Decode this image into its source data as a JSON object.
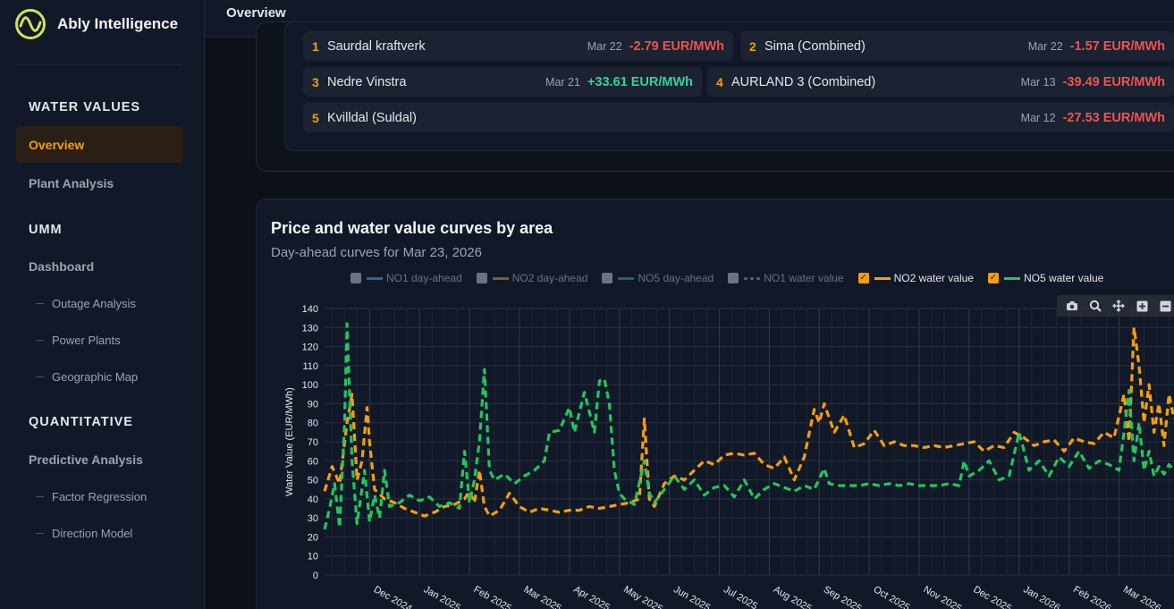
{
  "app": {
    "name": "Ably Intelligence"
  },
  "header": {
    "title": "Overview"
  },
  "sidebar": {
    "sections": [
      {
        "title": "WATER VALUES",
        "items": [
          "Overview",
          "Plant Analysis"
        ]
      },
      {
        "title": "UMM",
        "items": [
          "Dashboard"
        ],
        "subitems": [
          "Outage Analysis",
          "Power Plants",
          "Geographic Map"
        ]
      },
      {
        "title": "QUANTITATIVE",
        "items": [
          "Predictive Analysis"
        ],
        "subitems": [
          "Factor Regression",
          "Direction Model"
        ]
      }
    ],
    "active": "Overview"
  },
  "top_changes": [
    {
      "rank": "1",
      "name": "Saurdal kraftverk",
      "date": "Mar 22",
      "value": "-2.79 EUR/MWh",
      "direction": "neg"
    },
    {
      "rank": "2",
      "name": "Sima (Combined)",
      "date": "Mar 22",
      "value": "-1.57 EUR/MWh",
      "direction": "neg"
    },
    {
      "rank": "3",
      "name": "Nedre Vinstra",
      "date": "Mar 21",
      "value": "+33.61 EUR/MWh",
      "direction": "pos"
    },
    {
      "rank": "4",
      "name": "AURLAND 3 (Combined)",
      "date": "Mar 13",
      "value": "-39.49 EUR/MWh",
      "direction": "neg"
    },
    {
      "rank": "5",
      "name": "Kvilldal (Suldal)",
      "date": "Mar 12",
      "value": "-27.53 EUR/MWh",
      "direction": "neg"
    }
  ],
  "chart_card": {
    "title": "Price and water value curves by area",
    "subtitle": "Day-ahead curves for Mar 23, 2026"
  },
  "legend": [
    {
      "label": "NO1 day-ahead",
      "color": "#3b5b99",
      "checked": false,
      "style": "solid"
    },
    {
      "label": "NO2 day-ahead",
      "color": "#8a5a2b",
      "checked": false,
      "style": "solid"
    },
    {
      "label": "NO5 day-ahead",
      "color": "#1e6b4a",
      "checked": false,
      "style": "solid"
    },
    {
      "label": "NO1 water value",
      "color": "#3b5b99",
      "checked": false,
      "style": "dotted"
    },
    {
      "label": "NO2 water value",
      "color": "#f59e0b",
      "checked": true,
      "style": "solid"
    },
    {
      "label": "NO5 water value",
      "color": "#22c55e",
      "checked": true,
      "style": "solid"
    }
  ],
  "modebar_icons": [
    "camera-icon",
    "zoom-icon",
    "pan-icon",
    "zoom-in-icon",
    "zoom-out-icon"
  ],
  "chart_data": {
    "type": "line",
    "ylabel": "Water Value (EUR/MWh)",
    "ylim": [
      0,
      140
    ],
    "yticks": [
      "0",
      "10",
      "20",
      "30",
      "40",
      "50",
      "60",
      "70",
      "80",
      "90",
      "100",
      "110",
      "120",
      "130",
      "140"
    ],
    "xticks": [
      "Dec 2024",
      "Jan 2025",
      "Feb 2025",
      "Mar 2025",
      "Apr 2025",
      "May 2025",
      "Jun 2025",
      "Jul 2025",
      "Aug 2025",
      "Sep 2025",
      "Oct 2025",
      "Nov 2025",
      "Dec 2025",
      "Jan 2026",
      "Feb 2026",
      "Mar 2026"
    ],
    "xlim_months": [
      -0.9,
      16.1
    ],
    "grid": true,
    "series": [
      {
        "name": "NO2 water value",
        "color": "#f59e0b",
        "points": [
          [
            -0.9,
            44
          ],
          [
            -0.75,
            57
          ],
          [
            -0.6,
            48
          ],
          [
            -0.45,
            80
          ],
          [
            -0.35,
            95
          ],
          [
            -0.25,
            50
          ],
          [
            -0.15,
            60
          ],
          [
            -0.05,
            88
          ],
          [
            0.0,
            70
          ],
          [
            0.1,
            45
          ],
          [
            0.3,
            40
          ],
          [
            0.5,
            38
          ],
          [
            0.7,
            35
          ],
          [
            0.9,
            33
          ],
          [
            1.1,
            31
          ],
          [
            1.3,
            33
          ],
          [
            1.5,
            36
          ],
          [
            1.7,
            37
          ],
          [
            1.9,
            40
          ],
          [
            2.0,
            44
          ],
          [
            2.1,
            38
          ],
          [
            2.2,
            55
          ],
          [
            2.3,
            36
          ],
          [
            2.4,
            31
          ],
          [
            2.6,
            34
          ],
          [
            2.8,
            43
          ],
          [
            3.0,
            36
          ],
          [
            3.2,
            33
          ],
          [
            3.4,
            35
          ],
          [
            3.6,
            34
          ],
          [
            3.8,
            33
          ],
          [
            4.0,
            34
          ],
          [
            4.2,
            34
          ],
          [
            4.4,
            36
          ],
          [
            4.6,
            35
          ],
          [
            4.8,
            36
          ],
          [
            5.0,
            37
          ],
          [
            5.2,
            38
          ],
          [
            5.4,
            40
          ],
          [
            5.5,
            82
          ],
          [
            5.6,
            40
          ],
          [
            5.7,
            36
          ],
          [
            5.9,
            48
          ],
          [
            6.1,
            52
          ],
          [
            6.3,
            50
          ],
          [
            6.5,
            55
          ],
          [
            6.7,
            60
          ],
          [
            6.9,
            58
          ],
          [
            7.1,
            63
          ],
          [
            7.3,
            64
          ],
          [
            7.5,
            63
          ],
          [
            7.7,
            64
          ],
          [
            7.9,
            58
          ],
          [
            8.1,
            56
          ],
          [
            8.3,
            62
          ],
          [
            8.5,
            50
          ],
          [
            8.7,
            62
          ],
          [
            8.9,
            87
          ],
          [
            9.0,
            80
          ],
          [
            9.1,
            90
          ],
          [
            9.3,
            75
          ],
          [
            9.5,
            84
          ],
          [
            9.7,
            67
          ],
          [
            9.9,
            69
          ],
          [
            10.1,
            76
          ],
          [
            10.3,
            68
          ],
          [
            10.5,
            70
          ],
          [
            10.7,
            68
          ],
          [
            10.9,
            68
          ],
          [
            11.1,
            67
          ],
          [
            11.3,
            68
          ],
          [
            11.5,
            67
          ],
          [
            11.7,
            68
          ],
          [
            11.9,
            69
          ],
          [
            12.1,
            70
          ],
          [
            12.3,
            65
          ],
          [
            12.5,
            68
          ],
          [
            12.7,
            67
          ],
          [
            12.9,
            75
          ],
          [
            13.1,
            72
          ],
          [
            13.3,
            68
          ],
          [
            13.5,
            70
          ],
          [
            13.7,
            71
          ],
          [
            13.9,
            65
          ],
          [
            14.1,
            72
          ],
          [
            14.3,
            70
          ],
          [
            14.5,
            69
          ],
          [
            14.7,
            75
          ],
          [
            14.9,
            72
          ],
          [
            15.1,
            95
          ],
          [
            15.2,
            70
          ],
          [
            15.3,
            130
          ],
          [
            15.4,
            110
          ],
          [
            15.5,
            80
          ],
          [
            15.6,
            100
          ],
          [
            15.7,
            75
          ],
          [
            15.8,
            90
          ],
          [
            15.9,
            68
          ],
          [
            16.0,
            95
          ],
          [
            16.1,
            82
          ]
        ]
      },
      {
        "name": "NO5 water value",
        "color": "#22c55e",
        "points": [
          [
            -0.9,
            24
          ],
          [
            -0.8,
            35
          ],
          [
            -0.7,
            48
          ],
          [
            -0.6,
            25
          ],
          [
            -0.5,
            80
          ],
          [
            -0.45,
            132
          ],
          [
            -0.35,
            60
          ],
          [
            -0.25,
            27
          ],
          [
            -0.1,
            55
          ],
          [
            0.0,
            28
          ],
          [
            0.1,
            42
          ],
          [
            0.2,
            30
          ],
          [
            0.3,
            55
          ],
          [
            0.4,
            36
          ],
          [
            0.6,
            38
          ],
          [
            0.8,
            42
          ],
          [
            1.0,
            39
          ],
          [
            1.2,
            41
          ],
          [
            1.4,
            36
          ],
          [
            1.6,
            38
          ],
          [
            1.8,
            35
          ],
          [
            1.9,
            65
          ],
          [
            2.0,
            38
          ],
          [
            2.1,
            50
          ],
          [
            2.2,
            70
          ],
          [
            2.3,
            108
          ],
          [
            2.4,
            55
          ],
          [
            2.5,
            50
          ],
          [
            2.7,
            53
          ],
          [
            2.9,
            48
          ],
          [
            3.1,
            52
          ],
          [
            3.3,
            55
          ],
          [
            3.5,
            60
          ],
          [
            3.6,
            75
          ],
          [
            3.8,
            76
          ],
          [
            4.0,
            88
          ],
          [
            4.1,
            75
          ],
          [
            4.3,
            96
          ],
          [
            4.5,
            75
          ],
          [
            4.6,
            102
          ],
          [
            4.7,
            103
          ],
          [
            4.8,
            90
          ],
          [
            4.9,
            55
          ],
          [
            5.0,
            43
          ],
          [
            5.1,
            40
          ],
          [
            5.3,
            37
          ],
          [
            5.5,
            60
          ],
          [
            5.6,
            43
          ],
          [
            5.7,
            38
          ],
          [
            5.9,
            45
          ],
          [
            6.1,
            52
          ],
          [
            6.3,
            45
          ],
          [
            6.5,
            50
          ],
          [
            6.7,
            42
          ],
          [
            6.9,
            46
          ],
          [
            7.1,
            47
          ],
          [
            7.3,
            41
          ],
          [
            7.5,
            50
          ],
          [
            7.7,
            40
          ],
          [
            7.9,
            45
          ],
          [
            8.1,
            48
          ],
          [
            8.3,
            46
          ],
          [
            8.5,
            44
          ],
          [
            8.7,
            47
          ],
          [
            8.9,
            45
          ],
          [
            9.1,
            56
          ],
          [
            9.2,
            48
          ],
          [
            9.4,
            47
          ],
          [
            9.6,
            47
          ],
          [
            9.8,
            47
          ],
          [
            10.0,
            48
          ],
          [
            10.2,
            47
          ],
          [
            10.4,
            48
          ],
          [
            10.6,
            47
          ],
          [
            10.8,
            48
          ],
          [
            11.0,
            47
          ],
          [
            11.2,
            47
          ],
          [
            11.4,
            47
          ],
          [
            11.6,
            48
          ],
          [
            11.8,
            47
          ],
          [
            11.9,
            60
          ],
          [
            12.0,
            52
          ],
          [
            12.2,
            55
          ],
          [
            12.4,
            60
          ],
          [
            12.6,
            50
          ],
          [
            12.8,
            52
          ],
          [
            13.0,
            75
          ],
          [
            13.2,
            55
          ],
          [
            13.4,
            60
          ],
          [
            13.6,
            52
          ],
          [
            13.8,
            62
          ],
          [
            14.0,
            57
          ],
          [
            14.2,
            65
          ],
          [
            14.4,
            56
          ],
          [
            14.6,
            60
          ],
          [
            14.8,
            58
          ],
          [
            15.0,
            55
          ],
          [
            15.1,
            75
          ],
          [
            15.2,
            97
          ],
          [
            15.3,
            60
          ],
          [
            15.4,
            80
          ],
          [
            15.5,
            55
          ],
          [
            15.6,
            65
          ],
          [
            15.7,
            52
          ],
          [
            15.8,
            57
          ],
          [
            15.9,
            53
          ],
          [
            16.0,
            58
          ],
          [
            16.1,
            55
          ]
        ]
      }
    ]
  }
}
